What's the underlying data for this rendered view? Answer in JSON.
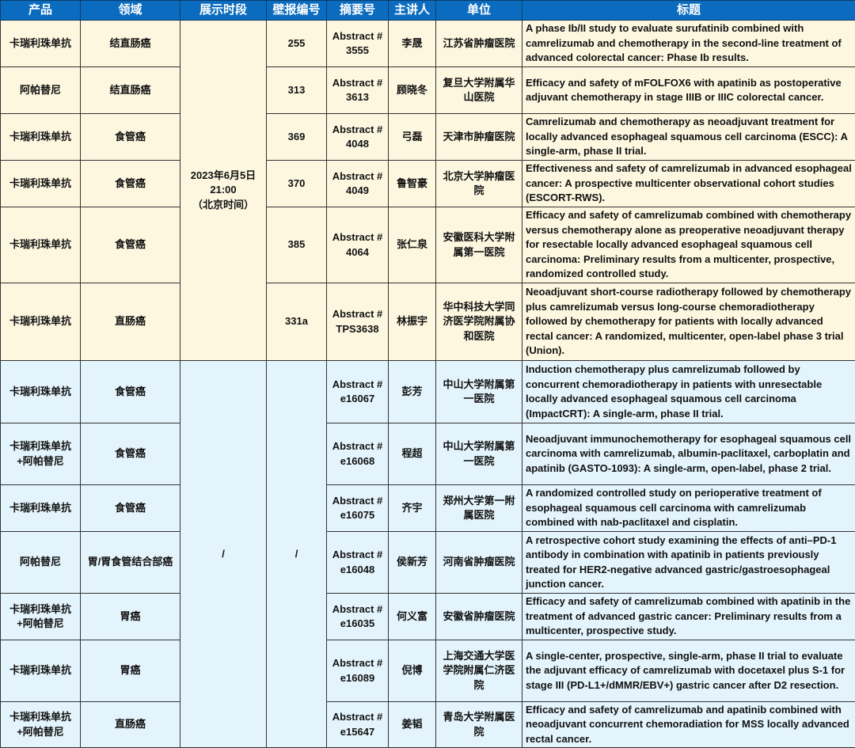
{
  "colors": {
    "header_bg": "#0b6cbf",
    "group1_bg": "#fdf7e0",
    "group2_bg": "#e4f4fc"
  },
  "headers": [
    "产品",
    "领域",
    "展示时段",
    "壁报编号",
    "摘要号",
    "主讲人",
    "单位",
    "标题"
  ],
  "groups": [
    {
      "time": "2023年6月5日\n21:00\n（北京时间）",
      "poster_shared": null,
      "rows": [
        {
          "product": "卡瑞利珠单抗",
          "field": "结直肠癌",
          "poster": "255",
          "abstract": "Abstract #\n3555",
          "speaker": "李晟",
          "unit": "江苏省肿瘤医院",
          "title": "A phase Ib/II study to evaluate surufatinib combined with camrelizumab and chemotherapy in the second-line treatment of advanced colorectal cancer: Phase Ib results."
        },
        {
          "product": "阿帕替尼",
          "field": "结直肠癌",
          "poster": "313",
          "abstract": "Abstract #\n3613",
          "speaker": "顾晓冬",
          "unit": "复旦大学附属华山医院",
          "title": "Efficacy and safety of mFOLFOX6 with apatinib as postoperative adjuvant chemotherapy in stage IIIB or IIIC colorectal cancer."
        },
        {
          "product": "卡瑞利珠单抗",
          "field": "食管癌",
          "poster": "369",
          "abstract": "Abstract #\n4048",
          "speaker": "弓磊",
          "unit": "天津市肿瘤医院",
          "title": "Camrelizumab and chemotherapy as neoadjuvant treatment for locally advanced esophageal squamous cell carcinoma (ESCC): A single-arm, phase II trial."
        },
        {
          "product": "卡瑞利珠单抗",
          "field": "食管癌",
          "poster": "370",
          "abstract": "Abstract #\n4049",
          "speaker": "鲁智豪",
          "unit": "北京大学肿瘤医院",
          "title": "Effectiveness and safety of camrelizumab in advanced esophageal cancer: A prospective multicenter observational cohort studies (ESCORT-RWS)."
        },
        {
          "product": "卡瑞利珠单抗",
          "field": "食管癌",
          "poster": "385",
          "abstract": "Abstract #\n4064",
          "speaker": "张仁泉",
          "unit": "安徽医科大学附属第一医院",
          "title": "Efficacy and safety of camrelizumab combined with chemotherapy versus chemotherapy alone as preoperative neoadjuvant therapy for resectable locally advanced esophageal squamous cell carcinoma: Preliminary results from a multicenter, prospective, randomized controlled study."
        },
        {
          "product": "卡瑞利珠单抗",
          "field": "直肠癌",
          "poster": "331a",
          "abstract": "Abstract #\nTPS3638",
          "speaker": "林振宇",
          "unit": "华中科技大学同济医学院附属协和医院",
          "title": "Neoadjuvant short-course radiotherapy followed by chemotherapy plus camrelizumab versus long-course chemoradiotherapy followed by chemotherapy for patients with locally advanced rectal cancer: A randomized, multicenter, open-label phase 3 trial (Union)."
        }
      ]
    },
    {
      "time": "/",
      "poster_shared": "/",
      "rows": [
        {
          "product": "卡瑞利珠单抗",
          "field": "食管癌",
          "abstract": "Abstract #\ne16067",
          "speaker": "彭芳",
          "unit": "中山大学附属第一医院",
          "title": "Induction chemotherapy plus camrelizumab followed by concurrent chemoradiotherapy in patients with unresectable locally advanced esophageal squamous cell carcinoma (ImpactCRT): A single-arm, phase II trial."
        },
        {
          "product": "卡瑞利珠单抗\n+阿帕替尼",
          "field": "食管癌",
          "abstract": "Abstract #\ne16068",
          "speaker": "程超",
          "unit": "中山大学附属第一医院",
          "title": "Neoadjuvant immunochemotherapy for esophageal squamous cell carcinoma with camrelizumab, albumin-paclitaxel, carboplatin and apatinib (GASTO-1093): A single-arm, open-label, phase 2 trial."
        },
        {
          "product": "卡瑞利珠单抗",
          "field": "食管癌",
          "abstract": "Abstract #\ne16075",
          "speaker": "齐宇",
          "unit": "郑州大学第一附属医院",
          "title": "A randomized controlled study on perioperative treatment of esophageal squamous cell carcinoma with camrelizumab combined with nab-paclitaxel and cisplatin."
        },
        {
          "product": "阿帕替尼",
          "field": "胃/胃食管结合部癌",
          "abstract": "Abstract #\ne16048",
          "speaker": "侯新芳",
          "unit": "河南省肿瘤医院",
          "title": "A retrospective cohort study examining the effects of anti–PD-1 antibody in combination with apatinib in patients previously treated for HER2-negative advanced gastric/gastroesophageal junction cancer."
        },
        {
          "product": "卡瑞利珠单抗\n+阿帕替尼",
          "field": "胃癌",
          "abstract": "Abstract #\ne16035",
          "speaker": "何义富",
          "unit": "安徽省肿瘤医院",
          "title": "Efficacy and safety of camrelizumab combined with apatinib in the treatment of advanced gastric cancer: Preliminary results from a multicenter, prospective study."
        },
        {
          "product": "卡瑞利珠单抗",
          "field": "胃癌",
          "abstract": "Abstract #\ne16089",
          "speaker": "倪博",
          "unit": "上海交通大学医学院附属仁济医院",
          "title": "A single-center, prospective, single-arm, phase II trial to evaluate the adjuvant efficacy of camrelizumab with docetaxel plus S-1 for stage III (PD-L1+/dMMR/EBV+) gastric cancer after D2 resection."
        },
        {
          "product": "卡瑞利珠单抗\n+阿帕替尼",
          "field": "直肠癌",
          "abstract": "Abstract #\ne15647",
          "speaker": "姜韬",
          "unit": "青岛大学附属医院",
          "title": "Efficacy and safety of camrelizumab and apatinib combined with neoadjuvant concurrent chemoradiation for MSS locally advanced rectal cancer."
        }
      ]
    }
  ]
}
